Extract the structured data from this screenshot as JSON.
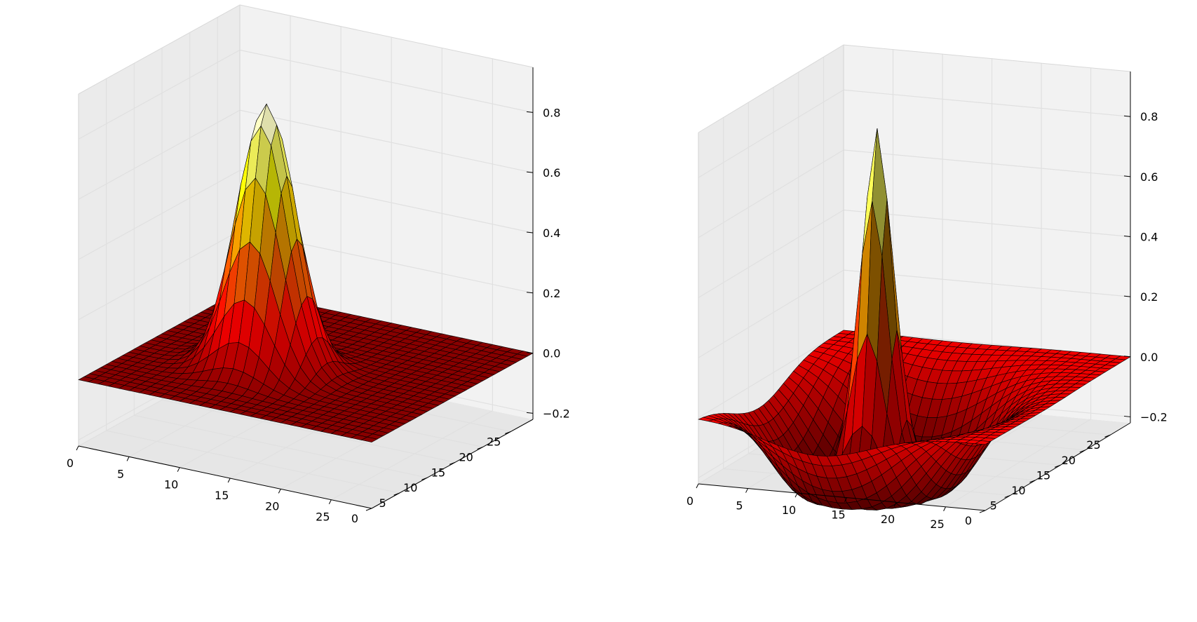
{
  "figure": {
    "background": "#ffffff",
    "pane_colors": [
      "#f2f2f2",
      "#ebebeb",
      "#e6e6e6"
    ],
    "grid_color": "#e0e0e0",
    "edge_color": "#000000",
    "colormap": "hot"
  },
  "chart_data": [
    {
      "type": "surface",
      "surface": "gaussian",
      "title": "",
      "xlabel": "",
      "ylabel": "",
      "zlabel": "",
      "grid": 30,
      "center": [
        12,
        12
      ],
      "peak": 0.88,
      "sigma": 2.6,
      "xlim": [
        0,
        29
      ],
      "ylim": [
        0,
        29
      ],
      "zlim": [
        -0.22,
        0.95
      ],
      "x_ticks": [
        "0",
        "5",
        "10",
        "15",
        "20",
        "25"
      ],
      "y_ticks": [
        "0",
        "5",
        "10",
        "15",
        "20",
        "25"
      ],
      "z_ticks": [
        "−0.2",
        "0.0",
        "0.2",
        "0.4",
        "0.6",
        "0.8"
      ],
      "x_tick_values": [
        0,
        5,
        10,
        15,
        20,
        25
      ],
      "y_tick_values": [
        0,
        5,
        10,
        15,
        20,
        25
      ],
      "z_tick_values": [
        -0.2,
        0,
        0.2,
        0.4,
        0.6,
        0.8
      ],
      "z_min": 0.0,
      "z_max": 0.88
    },
    {
      "type": "surface",
      "surface": "mexican-hat",
      "title": "",
      "xlabel": "",
      "ylabel": "",
      "zlabel": "",
      "grid": 30,
      "center": [
        12,
        12
      ],
      "peak": 0.88,
      "sigma": 1.35,
      "trough_depth": 0.2,
      "trough_sigma": 4.5,
      "xlim": [
        0,
        29
      ],
      "ylim": [
        0,
        29
      ],
      "zlim": [
        -0.22,
        0.95
      ],
      "x_ticks": [
        "0",
        "5",
        "10",
        "15",
        "20",
        "25"
      ],
      "y_ticks": [
        "0",
        "5",
        "10",
        "15",
        "20",
        "25"
      ],
      "z_ticks": [
        "−0.2",
        "0.0",
        "0.2",
        "0.4",
        "0.6",
        "0.8"
      ],
      "x_tick_values": [
        0,
        5,
        10,
        15,
        20,
        25
      ],
      "y_tick_values": [
        0,
        5,
        10,
        15,
        20,
        25
      ],
      "z_tick_values": [
        -0.2,
        0,
        0.2,
        0.4,
        0.6,
        0.8
      ],
      "z_min": -0.2,
      "z_max": 0.88
    }
  ]
}
